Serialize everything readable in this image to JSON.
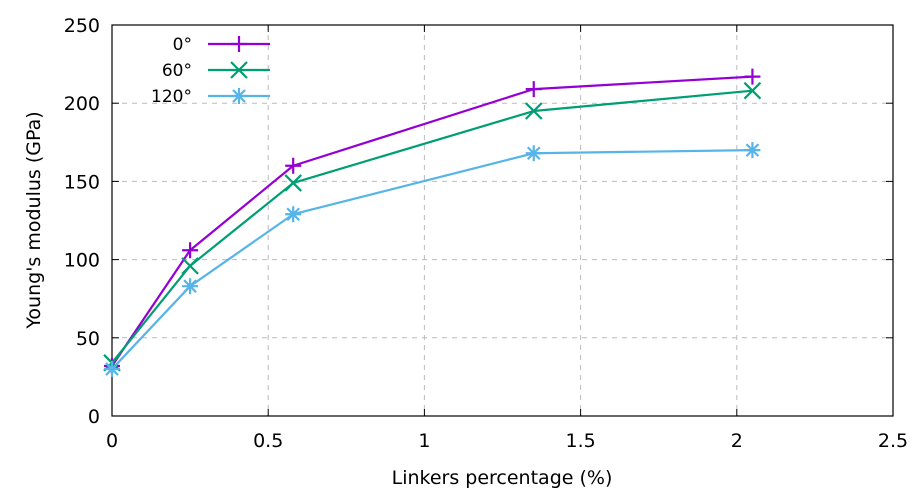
{
  "chart_data": {
    "type": "line",
    "xlabel": "Linkers percentage (%)",
    "ylabel": "Young's modulus (GPa)",
    "xlim": [
      0,
      2.5
    ],
    "ylim": [
      0,
      250
    ],
    "xticks": [
      0,
      0.5,
      1,
      1.5,
      2,
      2.5
    ],
    "xtick_labels": [
      "0",
      "0.5",
      "1",
      "1.5",
      "2",
      "2.5"
    ],
    "yticks": [
      0,
      50,
      100,
      150,
      200,
      250
    ],
    "ytick_labels": [
      "0",
      "50",
      "100",
      "150",
      "200",
      "250"
    ],
    "grid": true,
    "legend_position": "top-left",
    "x": [
      0,
      0.25,
      0.58,
      1.35,
      2.05
    ],
    "series": [
      {
        "name": "0°",
        "values": [
          32,
          106,
          160,
          209,
          217
        ],
        "color": "#9400d3",
        "marker": "plus"
      },
      {
        "name": "60°",
        "values": [
          34,
          96,
          149,
          195,
          208
        ],
        "color": "#009e73",
        "marker": "cross"
      },
      {
        "name": "120°",
        "values": [
          30,
          83,
          129,
          168,
          170
        ],
        "color": "#56b4e9",
        "marker": "asterisk"
      }
    ]
  }
}
